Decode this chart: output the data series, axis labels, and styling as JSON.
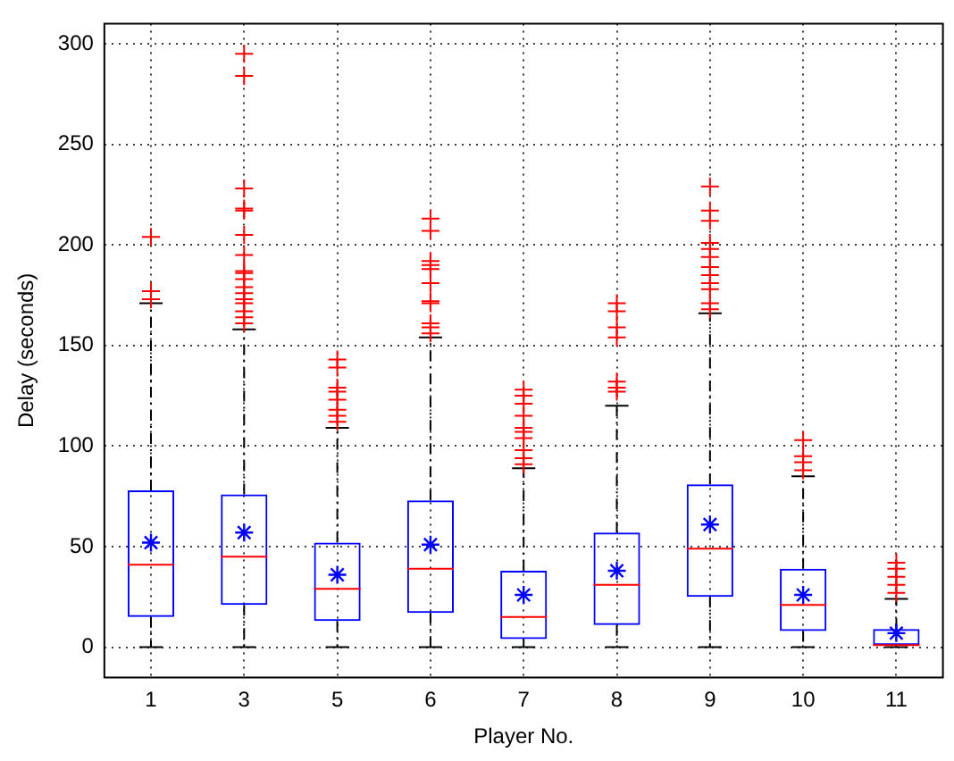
{
  "chart_data": {
    "type": "box",
    "xlabel": "Player No.",
    "ylabel": "Delay (seconds)",
    "categories": [
      "1",
      "3",
      "5",
      "6",
      "7",
      "8",
      "9",
      "10",
      "11"
    ],
    "color": "#0000ff",
    "marker": "cross",
    "grid": true,
    "ylim": [
      -15,
      310
    ],
    "yticks": [
      0,
      50,
      100,
      150,
      200,
      250,
      300
    ],
    "boxes": [
      {
        "low": 0,
        "q1": 15,
        "median": 41,
        "q3": 78,
        "high": 171,
        "mean": 52,
        "outliers": [
          173,
          177,
          204
        ]
      },
      {
        "low": 0,
        "q1": 21,
        "median": 45,
        "q3": 76,
        "high": 158,
        "mean": 57,
        "outliers": [
          161,
          164,
          167,
          171,
          173,
          176,
          179,
          183,
          186,
          187,
          195,
          205,
          217,
          218,
          228,
          284,
          295
        ]
      },
      {
        "low": 0,
        "q1": 13,
        "median": 29,
        "q3": 52,
        "high": 109,
        "mean": 36,
        "outliers": [
          112,
          115,
          118,
          123,
          127,
          129,
          139,
          143
        ]
      },
      {
        "low": 0,
        "q1": 17,
        "median": 39,
        "q3": 73,
        "high": 154,
        "mean": 51,
        "outliers": [
          156,
          159,
          161,
          171,
          172,
          181,
          188,
          190,
          192,
          207,
          213
        ]
      },
      {
        "low": 0,
        "q1": 4,
        "median": 15,
        "q3": 38,
        "high": 89,
        "mean": 26,
        "outliers": [
          91,
          94,
          98,
          104,
          107,
          109,
          115,
          121,
          125,
          128
        ]
      },
      {
        "low": 0,
        "q1": 11,
        "median": 31,
        "q3": 57,
        "high": 120,
        "mean": 38,
        "outliers": [
          127,
          129,
          132,
          154,
          159,
          167,
          171
        ]
      },
      {
        "low": 0,
        "q1": 25,
        "median": 49,
        "q3": 81,
        "high": 166,
        "mean": 61,
        "outliers": [
          168,
          171,
          178,
          181,
          185,
          189,
          194,
          198,
          201,
          212,
          217,
          229
        ]
      },
      {
        "low": 0,
        "q1": 8,
        "median": 21,
        "q3": 39,
        "high": 85,
        "mean": 26,
        "outliers": [
          88,
          92,
          95,
          103
        ]
      },
      {
        "low": 0,
        "q1": 1,
        "median": 1,
        "q3": 9,
        "high": 24,
        "mean": 7,
        "outliers": [
          27,
          31,
          35,
          39,
          42
        ]
      }
    ]
  }
}
